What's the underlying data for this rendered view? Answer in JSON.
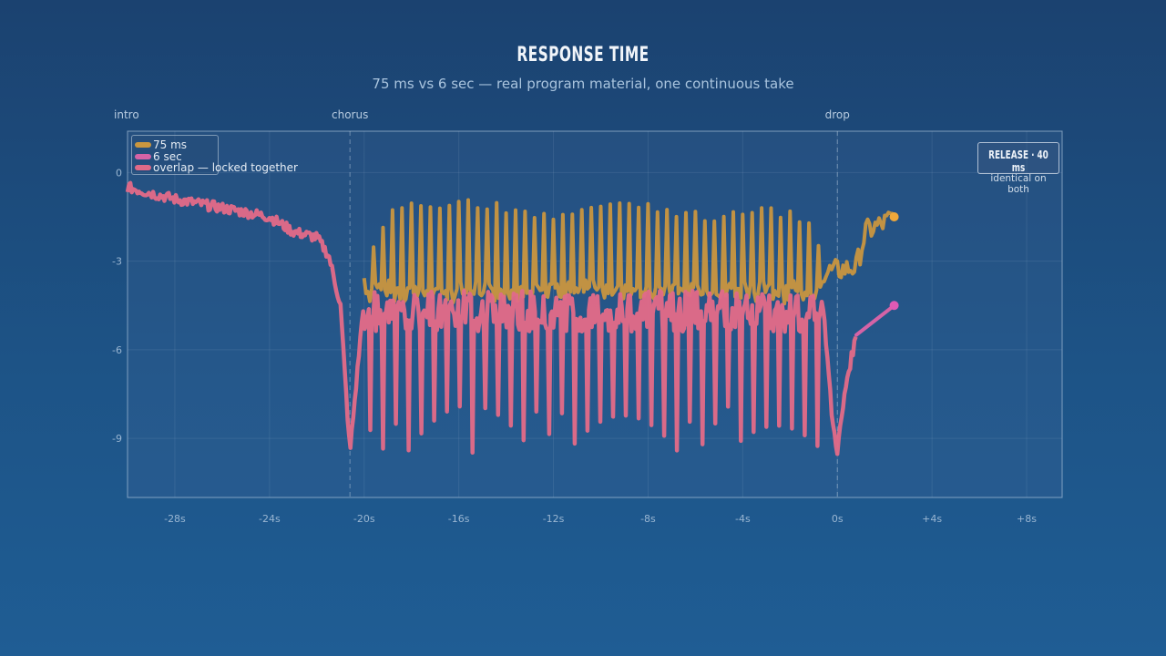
{
  "title": "RESPONSE TIME",
  "subtitle": "75 ms vs 6 sec — real program material, one continuous take",
  "colors": {
    "fast": "#c9963f",
    "slow": "#d563a6",
    "overlap": "#e06a88",
    "fast_marker": "#f0a83a",
    "slow_marker": "#e05ab5"
  },
  "release": {
    "title": "RELEASE · 40 ms",
    "note": "identical on both"
  },
  "chart_data": {
    "type": "line",
    "xlim": [
      -30,
      9.5
    ],
    "ylim": [
      -11,
      1.4
    ],
    "x_ticks": [
      -28,
      -24,
      -20,
      -16,
      -12,
      -8,
      -4,
      0,
      4,
      8
    ],
    "x_tick_labels": [
      "-28s",
      "-24s",
      "-20s",
      "-16s",
      "-12s",
      "-8s",
      "-4s",
      "0s",
      "+4s",
      "+8s"
    ],
    "y_ticks": [
      0,
      -3,
      -6,
      -9
    ],
    "y_tick_labels": [
      "0",
      "-3",
      "-6",
      "-9"
    ],
    "grid": true,
    "legend_position": "top-left",
    "sections": [
      {
        "label": "intro",
        "x": -30
      },
      {
        "label": "chorus",
        "x": -20.6
      },
      {
        "label": "drop",
        "x": 0
      }
    ],
    "series": [
      {
        "name": "75 ms",
        "points": [
          [
            -20,
            -3.8
          ],
          [
            -19,
            -1.4
          ],
          [
            -18,
            -1.3
          ],
          [
            -17,
            -1.2
          ],
          [
            -16,
            -1.3
          ],
          [
            -15,
            -1.2
          ],
          [
            -14,
            -1.4
          ],
          [
            -13,
            -1.5
          ],
          [
            -12,
            -1.8
          ],
          [
            -11,
            -1.6
          ],
          [
            -10,
            -1.4
          ],
          [
            -9,
            -1.3
          ],
          [
            -8,
            -1.2
          ],
          [
            -7,
            -1.6
          ],
          [
            -6,
            -1.7
          ],
          [
            -5,
            -1.8
          ],
          [
            -4,
            -1.6
          ],
          [
            -3,
            -1.5
          ],
          [
            -2,
            -1.6
          ],
          [
            -1,
            -1.8
          ],
          [
            -0.6,
            -3.4
          ],
          [
            0.8,
            -3.2
          ],
          [
            1.2,
            -2.0
          ],
          [
            2.0,
            -1.7
          ],
          [
            2.4,
            -1.5
          ]
        ],
        "end_marker": [
          2.4,
          -1.5
        ]
      },
      {
        "name": "6 sec",
        "points": [
          [
            0.8,
            -5.5
          ],
          [
            1.6,
            -5.0
          ],
          [
            2.4,
            -4.5
          ]
        ],
        "end_marker": [
          2.4,
          -4.5
        ]
      },
      {
        "name": "overlap — locked together",
        "points": [
          [
            -30,
            -0.5
          ],
          [
            -28,
            -0.9
          ],
          [
            -26,
            -1.2
          ],
          [
            -24,
            -1.5
          ],
          [
            -23,
            -2.0
          ],
          [
            -22,
            -2.2
          ],
          [
            -21.5,
            -2.8
          ],
          [
            -21,
            -4.5
          ],
          [
            -20.6,
            -9.5
          ],
          [
            -20,
            -4.2
          ],
          [
            -18,
            -4.1
          ],
          [
            -16,
            -4.2
          ],
          [
            -14,
            -4.0
          ],
          [
            -12,
            -4.3
          ],
          [
            -10,
            -4.2
          ],
          [
            -8,
            -4.1
          ],
          [
            -6,
            -4.3
          ],
          [
            -4,
            -4.2
          ],
          [
            -2,
            -4.1
          ],
          [
            -0.6,
            -4.5
          ],
          [
            -0.2,
            -8.5
          ],
          [
            0,
            -9.4
          ],
          [
            0.4,
            -7.0
          ],
          [
            0.8,
            -5.5
          ]
        ],
        "dip_floor": -9.5
      }
    ]
  }
}
